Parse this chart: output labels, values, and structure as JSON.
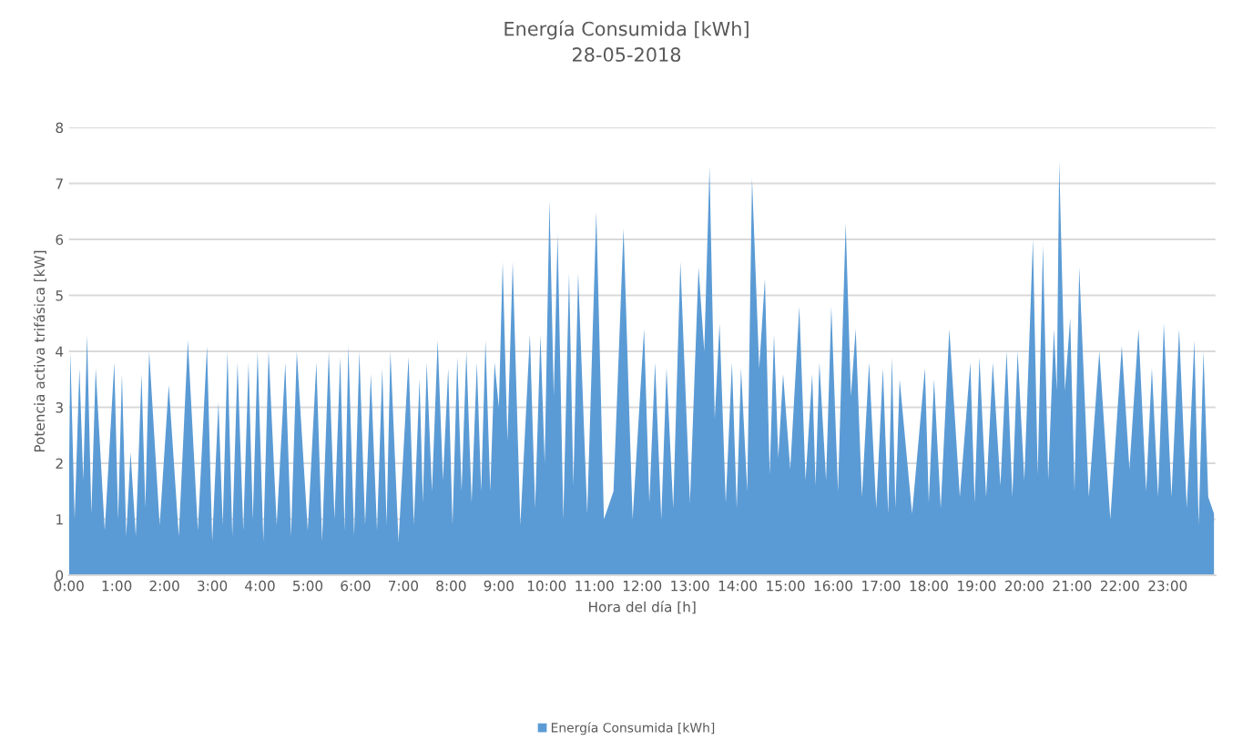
{
  "chart_data": {
    "type": "area",
    "title": "Energía Consumida [kWh]",
    "subtitle": "28-05-2018",
    "xlabel": "Hora del día [h]",
    "ylabel": "Potencia activa trifásica [kW]",
    "xlim": [
      0,
      24
    ],
    "xticks": [
      {
        "value": 0,
        "label": "0:00"
      },
      {
        "value": 1,
        "label": "1:00"
      },
      {
        "value": 2,
        "label": "2:00"
      },
      {
        "value": 3,
        "label": "3:00"
      },
      {
        "value": 4,
        "label": "4:00"
      },
      {
        "value": 5,
        "label": "5:00"
      },
      {
        "value": 6,
        "label": "6:00"
      },
      {
        "value": 7,
        "label": "7:00"
      },
      {
        "value": 8,
        "label": "8:00"
      },
      {
        "value": 9,
        "label": "9:00"
      },
      {
        "value": 10,
        "label": "10:00"
      },
      {
        "value": 11,
        "label": "11:00"
      },
      {
        "value": 12,
        "label": "12:00"
      },
      {
        "value": 13,
        "label": "13:00"
      },
      {
        "value": 14,
        "label": "14:00"
      },
      {
        "value": 15,
        "label": "15:00"
      },
      {
        "value": 16,
        "label": "16:00"
      },
      {
        "value": 17,
        "label": "17:00"
      },
      {
        "value": 18,
        "label": "18:00"
      },
      {
        "value": 19,
        "label": "19:00"
      },
      {
        "value": 20,
        "label": "20:00"
      },
      {
        "value": 21,
        "label": "21:00"
      },
      {
        "value": 22,
        "label": "22:00"
      },
      {
        "value": 23,
        "label": "23:00"
      }
    ],
    "ylim": [
      0,
      8
    ],
    "yticks": [
      0,
      1,
      2,
      3,
      4,
      5,
      6,
      7,
      8
    ],
    "grid": "y",
    "legend": "bottom",
    "series": [
      {
        "name": "Energía Consumida [kWh]",
        "color": "#5b9bd5",
        "x": [
          0,
          0.03,
          0.12,
          0.22,
          0.3,
          0.38,
          0.47,
          0.56,
          0.75,
          0.95,
          1.03,
          1.11,
          1.2,
          1.29,
          1.4,
          1.52,
          1.6,
          1.68,
          1.9,
          2.09,
          2.3,
          2.49,
          2.7,
          2.89,
          3.0,
          3.13,
          3.22,
          3.32,
          3.42,
          3.53,
          3.65,
          3.76,
          3.85,
          3.95,
          4.07,
          4.18,
          4.35,
          4.53,
          4.65,
          4.77,
          5.0,
          5.18,
          5.3,
          5.44,
          5.56,
          5.68,
          5.77,
          5.85,
          5.97,
          6.08,
          6.2,
          6.32,
          6.45,
          6.56,
          6.65,
          6.73,
          6.9,
          7.11,
          7.22,
          7.34,
          7.41,
          7.49,
          7.6,
          7.72,
          7.83,
          7.94,
          8.03,
          8.13,
          8.22,
          8.32,
          8.43,
          8.54,
          8.63,
          8.72,
          8.82,
          8.91,
          9.0,
          9.08,
          9.18,
          9.29,
          9.45,
          9.65,
          9.76,
          9.87,
          9.96,
          10.06,
          10.15,
          10.23,
          10.35,
          10.47,
          10.56,
          10.66,
          10.85,
          11.04,
          11.2,
          11.4,
          11.61,
          11.8,
          12.04,
          12.15,
          12.27,
          12.4,
          12.51,
          12.65,
          12.8,
          13.0,
          13.18,
          13.3,
          13.41,
          13.52,
          13.62,
          13.75,
          13.88,
          13.98,
          14.07,
          14.2,
          14.3,
          14.45,
          14.57,
          14.67,
          14.76,
          14.85,
          14.95,
          15.1,
          15.29,
          15.42,
          15.56,
          15.63,
          15.71,
          15.85,
          15.96,
          16.1,
          16.26,
          16.37,
          16.47,
          16.6,
          16.75,
          16.9,
          17.04,
          17.15,
          17.23,
          17.3,
          17.39,
          17.65,
          17.92,
          18.0,
          18.11,
          18.25,
          18.43,
          18.65,
          18.87,
          18.96,
          19.06,
          19.2,
          19.34,
          19.5,
          19.63,
          19.75,
          19.86,
          20.0,
          20.18,
          20.28,
          20.39,
          20.5,
          20.62,
          20.68,
          20.73,
          20.85,
          20.96,
          21.05,
          21.15,
          21.35,
          21.57,
          21.8,
          22.04,
          22.2,
          22.39,
          22.55,
          22.67,
          22.8,
          22.92,
          23.08,
          23.24,
          23.4,
          23.56,
          23.65,
          23.75,
          23.85,
          23.97
        ],
        "values": [
          1.6,
          4.0,
          1.0,
          3.7,
          1.7,
          4.3,
          1.1,
          3.7,
          0.8,
          3.8,
          1.0,
          3.6,
          0.7,
          2.2,
          0.7,
          3.6,
          1.2,
          4.0,
          0.9,
          3.4,
          0.7,
          4.2,
          0.8,
          4.1,
          0.6,
          3.1,
          0.9,
          4.0,
          0.7,
          3.8,
          0.8,
          3.8,
          1.0,
          4.0,
          0.6,
          4.0,
          0.9,
          3.8,
          0.7,
          4.0,
          0.8,
          3.8,
          0.6,
          4.0,
          1.0,
          3.9,
          0.8,
          4.1,
          0.7,
          4.0,
          0.9,
          3.6,
          0.8,
          3.7,
          0.9,
          4.0,
          0.6,
          3.9,
          0.9,
          3.5,
          1.3,
          3.8,
          1.5,
          4.2,
          1.7,
          3.7,
          0.9,
          3.9,
          1.5,
          4.0,
          1.3,
          3.8,
          1.5,
          4.2,
          1.5,
          3.8,
          3.0,
          5.6,
          2.4,
          5.6,
          0.9,
          4.3,
          1.2,
          4.3,
          2.0,
          6.7,
          3.2,
          6.1,
          1.0,
          5.4,
          1.6,
          5.4,
          1.1,
          6.5,
          1.0,
          1.5,
          6.2,
          1.0,
          4.4,
          1.3,
          3.8,
          1.0,
          3.7,
          1.2,
          5.6,
          1.3,
          5.5,
          4.0,
          7.3,
          2.8,
          4.5,
          1.3,
          3.8,
          1.2,
          3.7,
          1.5,
          7.1,
          3.7,
          5.3,
          1.8,
          4.3,
          2.1,
          3.6,
          1.9,
          4.8,
          1.7,
          3.6,
          1.6,
          3.8,
          1.7,
          4.8,
          1.5,
          6.3,
          3.2,
          4.4,
          1.4,
          3.8,
          1.2,
          3.7,
          1.1,
          3.9,
          1.2,
          3.5,
          1.1,
          3.7,
          1.3,
          3.5,
          1.2,
          4.4,
          1.4,
          3.8,
          1.3,
          3.9,
          1.4,
          3.8,
          1.6,
          4.0,
          1.4,
          4.0,
          1.7,
          6.0,
          1.8,
          5.9,
          1.7,
          4.4,
          3.3,
          7.4,
          3.3,
          4.6,
          1.5,
          5.5,
          1.4,
          4.0,
          1.0,
          4.1,
          1.9,
          4.4,
          1.5,
          3.7,
          1.4,
          4.5,
          1.4,
          4.4,
          1.2,
          4.2,
          0.9,
          4.0,
          1.4,
          1.1
        ]
      }
    ]
  }
}
